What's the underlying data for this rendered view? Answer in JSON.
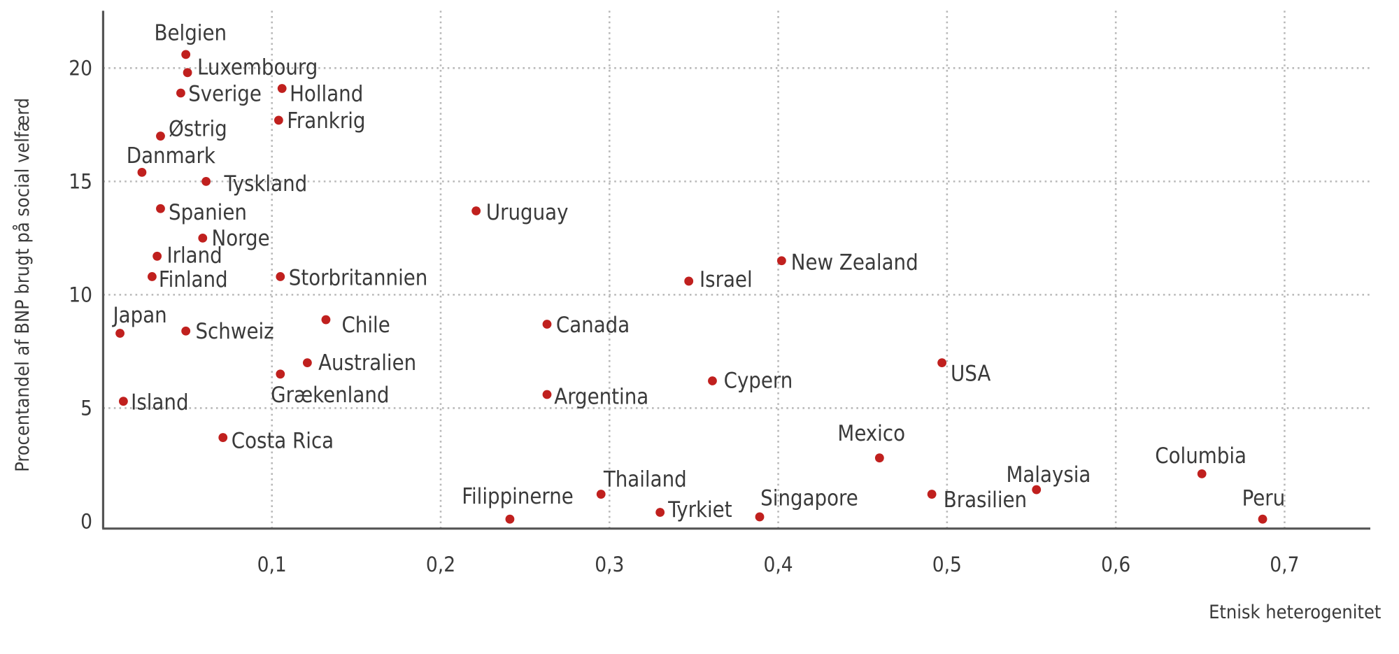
{
  "chart_data": {
    "type": "scatter",
    "title": "",
    "xlabel": "Etnisk heterogenitet",
    "ylabel": "Procentandel af BNP brugt på social velfærd",
    "xlim": [
      0,
      0.75
    ],
    "ylim": [
      0,
      22
    ],
    "xticks": [
      0.1,
      0.2,
      0.3,
      0.4,
      0.5,
      0.6,
      0.7
    ],
    "xtick_labels": [
      "0,1",
      "0,2",
      "0,3",
      "0,4",
      "0,5",
      "0,6",
      "0,7"
    ],
    "yticks": [
      0,
      5,
      10,
      15,
      20
    ],
    "ytick_labels": [
      "0",
      "5",
      "10",
      "15",
      "20"
    ],
    "grid": true,
    "marker_color": "#c0201e",
    "points": [
      {
        "label": "Belgien",
        "x": 0.049,
        "y": 20.6
      },
      {
        "label": "Luxembourg",
        "x": 0.05,
        "y": 19.8
      },
      {
        "label": "Sverige",
        "x": 0.046,
        "y": 18.9
      },
      {
        "label": "Holland",
        "x": 0.106,
        "y": 19.1
      },
      {
        "label": "Frankrig",
        "x": 0.104,
        "y": 17.7
      },
      {
        "label": "Østrig",
        "x": 0.034,
        "y": 17.0
      },
      {
        "label": "Danmark",
        "x": 0.023,
        "y": 15.4
      },
      {
        "label": "Tyskland",
        "x": 0.061,
        "y": 15.0
      },
      {
        "label": "Spanien",
        "x": 0.034,
        "y": 13.8
      },
      {
        "label": "Uruguay",
        "x": 0.221,
        "y": 13.7
      },
      {
        "label": "Norge",
        "x": 0.059,
        "y": 12.5
      },
      {
        "label": "Irland",
        "x": 0.032,
        "y": 11.7
      },
      {
        "label": "Finland",
        "x": 0.029,
        "y": 10.8
      },
      {
        "label": "Storbritannien",
        "x": 0.105,
        "y": 10.8
      },
      {
        "label": "Israel",
        "x": 0.347,
        "y": 10.6
      },
      {
        "label": "New Zealand",
        "x": 0.402,
        "y": 11.5
      },
      {
        "label": "Japan",
        "x": 0.01,
        "y": 8.3
      },
      {
        "label": "Schweiz",
        "x": 0.049,
        "y": 8.4
      },
      {
        "label": "Chile",
        "x": 0.132,
        "y": 8.9
      },
      {
        "label": "Canada",
        "x": 0.263,
        "y": 8.7
      },
      {
        "label": "Australien",
        "x": 0.121,
        "y": 7.0
      },
      {
        "label": "Grækenland",
        "x": 0.105,
        "y": 6.5
      },
      {
        "label": "USA",
        "x": 0.497,
        "y": 7.0
      },
      {
        "label": "Cypern",
        "x": 0.361,
        "y": 6.2
      },
      {
        "label": "Argentina",
        "x": 0.263,
        "y": 5.6
      },
      {
        "label": "Island",
        "x": 0.012,
        "y": 5.3
      },
      {
        "label": "Costa Rica",
        "x": 0.071,
        "y": 3.7
      },
      {
        "label": "Mexico",
        "x": 0.46,
        "y": 2.8
      },
      {
        "label": "Columbia",
        "x": 0.651,
        "y": 2.1
      },
      {
        "label": "Malaysia",
        "x": 0.553,
        "y": 1.4
      },
      {
        "label": "Brasilien",
        "x": 0.491,
        "y": 1.2
      },
      {
        "label": "Thailand",
        "x": 0.295,
        "y": 1.2
      },
      {
        "label": "Filippinerne",
        "x": 0.241,
        "y": 0.1
      },
      {
        "label": "Tyrkiet",
        "x": 0.33,
        "y": 0.4
      },
      {
        "label": "Singapore",
        "x": 0.389,
        "y": 0.2
      },
      {
        "label": "Peru",
        "x": 0.687,
        "y": 0.1
      }
    ]
  }
}
